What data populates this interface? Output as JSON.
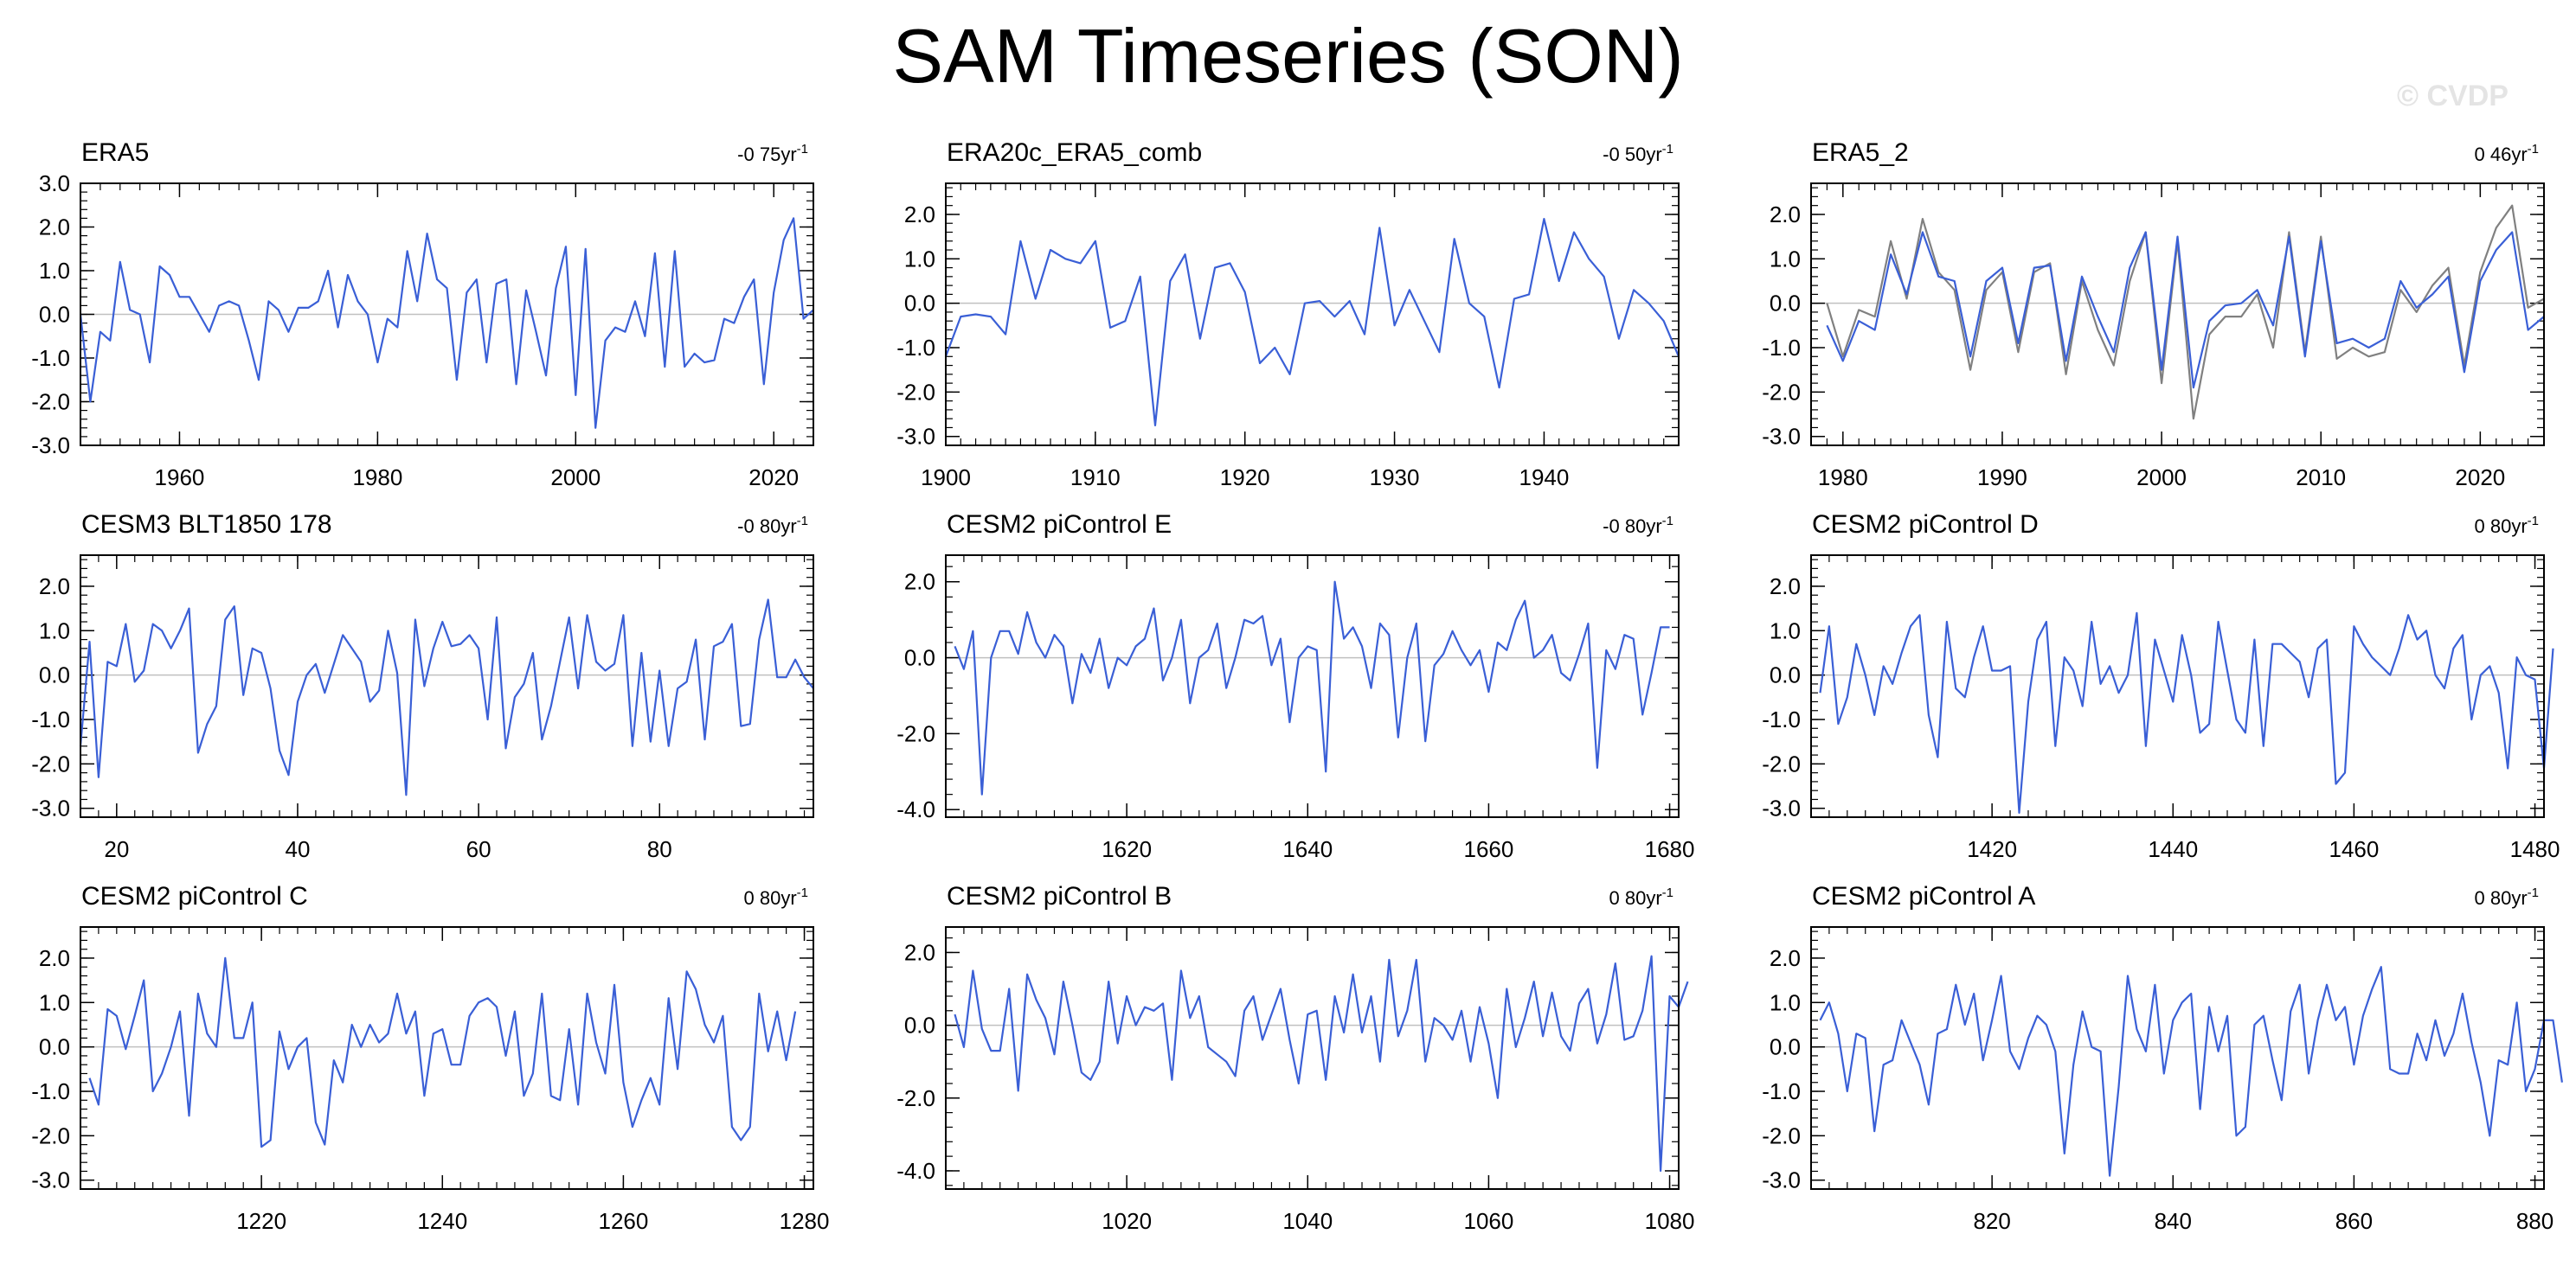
{
  "title": "SAM Timeseries (SON)",
  "watermark": "© CVDP",
  "colors": {
    "series": "#3a5fd6",
    "comparison": "#808080",
    "zero": "#c0c0c0"
  },
  "chart_data": [
    {
      "type": "line",
      "label": "ERA5",
      "trend": "-0 75yr",
      "trend_unit": "-1",
      "x_start": 1950,
      "x_step": 1,
      "xlim": [
        1950,
        2024
      ],
      "xticks": [
        1960,
        1980,
        2000,
        2020
      ],
      "ylim": [
        -3,
        3
      ],
      "yticks": [
        -3,
        -2,
        -1,
        0,
        1,
        2,
        3
      ],
      "series": [
        {
          "values": [
            0.0,
            -2.0,
            -0.4,
            -0.6,
            1.2,
            0.1,
            0.0,
            -1.1,
            1.1,
            0.9,
            0.4,
            0.4,
            0.0,
            -0.4,
            0.2,
            0.3,
            0.2,
            -0.6,
            -1.5,
            0.3,
            0.1,
            -0.4,
            0.15,
            0.15,
            0.3,
            1.0,
            -0.3,
            0.9,
            0.3,
            0.0,
            -1.1,
            -0.1,
            -0.3,
            1.45,
            0.3,
            1.85,
            0.8,
            0.6,
            -1.5,
            0.5,
            0.8,
            -1.1,
            0.7,
            0.8,
            -1.6,
            0.55,
            -0.4,
            -1.4,
            0.6,
            1.55,
            -1.85,
            1.5,
            -2.6,
            -0.6,
            -0.3,
            -0.4,
            0.3,
            -0.5,
            1.4,
            -1.2,
            1.45,
            -1.2,
            -0.9,
            -1.1,
            -1.05,
            -0.1,
            -0.2,
            0.4,
            0.8,
            -1.6,
            0.5,
            1.7,
            2.2,
            -0.1,
            0.1
          ]
        }
      ]
    },
    {
      "type": "line",
      "label": "ERA20c_ERA5_comb",
      "trend": "-0 50yr",
      "trend_unit": "-1",
      "x_start": 1900,
      "x_step": 1,
      "xlim": [
        1900,
        1949
      ],
      "xticks": [
        1900,
        1910,
        1920,
        1930,
        1940
      ],
      "ylim": [
        -3.2,
        2.7
      ],
      "yticks": [
        -3,
        -2,
        -1,
        0,
        1,
        2
      ],
      "series": [
        {
          "values": [
            -1.2,
            -0.3,
            -0.25,
            -0.3,
            -0.7,
            1.4,
            0.1,
            1.2,
            1.0,
            0.9,
            1.4,
            -0.55,
            -0.4,
            0.6,
            -2.75,
            0.5,
            1.1,
            -0.8,
            0.8,
            0.9,
            0.25,
            -1.35,
            -1.0,
            -1.6,
            0.0,
            0.05,
            -0.3,
            0.05,
            -0.7,
            1.7,
            -0.5,
            0.3,
            -0.4,
            -1.1,
            1.45,
            0.0,
            -0.3,
            -1.9,
            0.1,
            0.2,
            1.9,
            0.5,
            1.6,
            1.0,
            0.6,
            -0.8,
            0.3,
            0.0,
            -0.4,
            -1.2
          ]
        }
      ]
    },
    {
      "type": "line",
      "label": "ERA5_2",
      "trend": "0 46yr",
      "trend_unit": "-1",
      "x_start": 1979,
      "x_step": 1,
      "xlim": [
        1978,
        2024
      ],
      "xticks": [
        1980,
        1990,
        2000,
        2010,
        2020
      ],
      "ylim": [
        -3.2,
        2.7
      ],
      "yticks": [
        -3,
        -2,
        -1,
        0,
        1,
        2
      ],
      "series": [
        {
          "name": "",
          "values": [
            -0.5,
            -1.3,
            -0.4,
            -0.6,
            1.1,
            0.2,
            1.6,
            0.6,
            0.5,
            -1.2,
            0.5,
            0.8,
            -0.9,
            0.8,
            0.85,
            -1.3,
            0.6,
            -0.3,
            -1.1,
            0.8,
            1.6,
            -1.5,
            1.5,
            -1.9,
            -0.4,
            -0.05,
            0.0,
            0.3,
            -0.5,
            1.5,
            -1.2,
            1.4,
            -0.9,
            -0.8,
            -1.0,
            -0.8,
            0.5,
            -0.1,
            0.2,
            0.6,
            -1.55,
            0.5,
            1.2,
            1.6,
            -0.6,
            -0.3
          ]
        },
        {
          "name": "",
          "values": [
            0.0,
            -1.2,
            -0.15,
            -0.3,
            1.4,
            0.1,
            1.9,
            0.7,
            0.3,
            -1.5,
            0.3,
            0.7,
            -1.1,
            0.7,
            0.9,
            -1.6,
            0.5,
            -0.6,
            -1.4,
            0.5,
            1.6,
            -1.8,
            1.4,
            -2.6,
            -0.7,
            -0.3,
            -0.3,
            0.2,
            -1.0,
            1.6,
            -1.1,
            1.5,
            -1.25,
            -1.0,
            -1.2,
            -1.1,
            0.3,
            -0.2,
            0.4,
            0.8,
            -1.4,
            0.7,
            1.7,
            2.2,
            -0.1,
            0.1
          ]
        }
      ]
    },
    {
      "type": "line",
      "label": "CESM3 BLT1850 178",
      "trend": "-0 80yr",
      "trend_unit": "-1",
      "x_start": 16,
      "x_step": 1,
      "xlim": [
        16,
        97
      ],
      "xticks": [
        20,
        40,
        60,
        80
      ],
      "ylim": [
        -3.2,
        2.7
      ],
      "yticks": [
        -3,
        -2,
        -1,
        0,
        1,
        2
      ],
      "series": [
        {
          "values": [
            -1.6,
            0.75,
            -2.3,
            0.3,
            0.2,
            1.15,
            -0.15,
            0.1,
            1.15,
            1.0,
            0.6,
            1.0,
            1.5,
            -1.75,
            -1.1,
            -0.7,
            1.25,
            1.55,
            -0.45,
            0.6,
            0.5,
            -0.3,
            -1.7,
            -2.25,
            -0.6,
            0.0,
            0.25,
            -0.4,
            0.25,
            0.9,
            0.6,
            0.3,
            -0.6,
            -0.35,
            1.0,
            0.05,
            -2.7,
            1.25,
            -0.25,
            0.6,
            1.2,
            0.65,
            0.7,
            0.9,
            0.6,
            -1.0,
            1.3,
            -1.65,
            -0.5,
            -0.2,
            0.5,
            -1.45,
            -0.7,
            0.3,
            1.3,
            -0.3,
            1.35,
            0.3,
            0.1,
            0.25,
            1.35,
            -1.6,
            0.5,
            -1.5,
            0.1,
            -1.6,
            -0.3,
            -0.15,
            0.8,
            -1.45,
            0.65,
            0.75,
            1.15,
            -1.15,
            -1.1,
            0.8,
            1.7,
            -0.05,
            -0.05,
            0.35,
            -0.05,
            -0.3
          ]
        }
      ]
    },
    {
      "type": "line",
      "label": "CESM2 piControl E",
      "trend": "-0 80yr",
      "trend_unit": "-1",
      "x_start": 1601,
      "x_step": 1,
      "xlim": [
        1600,
        1681
      ],
      "xticks": [
        1620,
        1640,
        1660,
        1680
      ],
      "ylim": [
        -4.2,
        2.7
      ],
      "yticks": [
        -4,
        -2,
        0,
        2
      ],
      "series": [
        {
          "values": [
            0.3,
            -0.3,
            0.7,
            -3.6,
            0.0,
            0.7,
            0.7,
            0.1,
            1.2,
            0.4,
            0.0,
            0.6,
            0.3,
            -1.2,
            0.1,
            -0.4,
            0.5,
            -0.8,
            0.0,
            -0.2,
            0.3,
            0.5,
            1.3,
            -0.6,
            0.0,
            1.0,
            -1.2,
            0.0,
            0.2,
            0.9,
            -0.8,
            0.0,
            1.0,
            0.9,
            1.1,
            -0.2,
            0.5,
            -1.7,
            0.0,
            0.3,
            0.2,
            -3.0,
            2.0,
            0.5,
            0.8,
            0.3,
            -0.8,
            0.9,
            0.6,
            -2.1,
            0.0,
            0.9,
            -2.2,
            -0.2,
            0.1,
            0.7,
            0.2,
            -0.2,
            0.2,
            -0.9,
            0.4,
            0.2,
            1.0,
            1.5,
            0.0,
            0.2,
            0.6,
            -0.4,
            -0.6,
            0.1,
            0.9,
            -2.9,
            0.2,
            -0.3,
            0.6,
            0.5,
            -1.5,
            -0.4,
            0.8,
            0.8
          ]
        }
      ]
    },
    {
      "type": "line",
      "label": "CESM2 piControl D",
      "trend": "0 80yr",
      "trend_unit": "-1",
      "x_start": 1401,
      "x_step": 1,
      "xlim": [
        1400,
        1481
      ],
      "xticks": [
        1420,
        1440,
        1460,
        1480
      ],
      "ylim": [
        -3.2,
        2.7
      ],
      "yticks": [
        -3,
        -2,
        -1,
        0,
        1,
        2
      ],
      "series": [
        {
          "values": [
            -0.4,
            1.1,
            -1.1,
            -0.5,
            0.7,
            0.0,
            -0.9,
            0.2,
            -0.2,
            0.5,
            1.1,
            1.35,
            -0.9,
            -1.85,
            1.2,
            -0.3,
            -0.5,
            0.4,
            1.1,
            0.1,
            0.1,
            0.2,
            -3.1,
            -0.6,
            0.8,
            1.2,
            -1.6,
            0.4,
            0.1,
            -0.7,
            1.2,
            -0.2,
            0.2,
            -0.4,
            0.0,
            1.4,
            -1.6,
            0.8,
            0.1,
            -0.6,
            0.9,
            0.0,
            -1.3,
            -1.1,
            1.2,
            0.1,
            -1.0,
            -1.3,
            0.8,
            -1.6,
            0.7,
            0.7,
            0.5,
            0.3,
            -0.5,
            0.6,
            0.8,
            -2.45,
            -2.2,
            1.1,
            0.7,
            0.4,
            0.2,
            0.0,
            0.6,
            1.35,
            0.8,
            1.0,
            0.0,
            -0.3,
            0.6,
            0.9,
            -1.0,
            0.0,
            0.2,
            -0.4,
            -2.1,
            0.4,
            0.0,
            -0.1,
            -2.1,
            0.6
          ]
        }
      ]
    },
    {
      "type": "line",
      "label": "CESM2 piControl C",
      "trend": "0 80yr",
      "trend_unit": "-1",
      "x_start": 1201,
      "x_step": 1,
      "xlim": [
        1200,
        1281
      ],
      "xticks": [
        1220,
        1240,
        1260,
        1280
      ],
      "ylim": [
        -3.2,
        2.7
      ],
      "yticks": [
        -3,
        -2,
        -1,
        0,
        1,
        2
      ],
      "series": [
        {
          "values": [
            -0.7,
            -1.3,
            0.85,
            0.7,
            -0.05,
            0.7,
            1.5,
            -1.0,
            -0.6,
            0.0,
            0.8,
            -1.55,
            1.2,
            0.3,
            0.0,
            2.0,
            0.2,
            0.2,
            1.0,
            -2.25,
            -2.1,
            0.35,
            -0.5,
            0.0,
            0.2,
            -1.7,
            -2.2,
            -0.3,
            -0.8,
            0.5,
            0.0,
            0.5,
            0.1,
            0.3,
            1.2,
            0.3,
            0.8,
            -1.1,
            0.3,
            0.4,
            -0.4,
            -0.4,
            0.7,
            1.0,
            1.1,
            0.9,
            -0.2,
            0.8,
            -1.1,
            -0.6,
            1.2,
            -1.1,
            -1.2,
            0.4,
            -1.3,
            1.2,
            0.1,
            -0.6,
            1.4,
            -0.8,
            -1.8,
            -1.2,
            -0.7,
            -1.3,
            1.1,
            -0.5,
            1.7,
            1.3,
            0.5,
            0.1,
            0.7,
            -1.8,
            -2.1,
            -1.8,
            1.2,
            -0.1,
            0.8,
            -0.3,
            0.8
          ]
        }
      ]
    },
    {
      "type": "line",
      "label": "CESM2 piControl B",
      "trend": "0 80yr",
      "trend_unit": "-1",
      "x_start": 1001,
      "x_step": 1,
      "xlim": [
        1000,
        1081
      ],
      "xticks": [
        1020,
        1040,
        1060,
        1080
      ],
      "ylim": [
        -4.5,
        2.7
      ],
      "yticks": [
        -4,
        -2,
        0,
        2
      ],
      "series": [
        {
          "values": [
            0.3,
            -0.6,
            1.5,
            -0.1,
            -0.7,
            -0.7,
            1.0,
            -1.8,
            1.4,
            0.7,
            0.2,
            -0.8,
            1.2,
            0.0,
            -1.3,
            -1.5,
            -1.0,
            1.2,
            -0.5,
            0.8,
            0.0,
            0.5,
            0.4,
            0.6,
            -1.5,
            1.5,
            0.2,
            0.8,
            -0.6,
            -0.8,
            -1.0,
            -1.4,
            0.4,
            0.8,
            -0.4,
            0.3,
            1.0,
            -0.4,
            -1.6,
            0.3,
            0.4,
            -1.5,
            0.8,
            -0.2,
            1.4,
            -0.2,
            0.8,
            -1.0,
            1.8,
            -0.3,
            0.4,
            1.8,
            -1.0,
            0.2,
            0.0,
            -0.4,
            0.4,
            -1.0,
            0.5,
            -0.5,
            -2.0,
            1.0,
            -0.6,
            0.2,
            1.2,
            -0.3,
            0.9,
            -0.3,
            -0.7,
            0.6,
            1.0,
            -0.5,
            0.3,
            1.7,
            -0.4,
            -0.3,
            0.4,
            1.9,
            -4.0,
            0.8,
            0.5,
            1.2
          ]
        }
      ]
    },
    {
      "type": "line",
      "label": "CESM2 piControl A",
      "trend": "0 80yr",
      "trend_unit": "-1",
      "x_start": 801,
      "x_step": 1,
      "xlim": [
        800,
        881
      ],
      "xticks": [
        820,
        840,
        860,
        880
      ],
      "ylim": [
        -3.2,
        2.7
      ],
      "yticks": [
        -3,
        -2,
        -1,
        0,
        1,
        2
      ],
      "series": [
        {
          "values": [
            0.6,
            1.0,
            0.3,
            -1.0,
            0.3,
            0.2,
            -1.9,
            -0.4,
            -0.3,
            0.6,
            0.1,
            -0.4,
            -1.3,
            0.3,
            0.4,
            1.4,
            0.5,
            1.2,
            -0.3,
            0.6,
            1.6,
            -0.1,
            -0.5,
            0.2,
            0.7,
            0.5,
            -0.1,
            -2.4,
            -0.4,
            0.8,
            0.0,
            -0.1,
            -2.9,
            -0.9,
            1.6,
            0.4,
            -0.1,
            1.4,
            -0.6,
            0.6,
            1.0,
            1.2,
            -1.4,
            0.9,
            -0.1,
            0.7,
            -2.0,
            -1.8,
            0.5,
            0.7,
            -0.3,
            -1.2,
            0.8,
            1.4,
            -0.6,
            0.6,
            1.4,
            0.6,
            0.9,
            -0.4,
            0.7,
            1.3,
            1.8,
            -0.5,
            -0.6,
            -0.6,
            0.3,
            -0.3,
            0.6,
            -0.2,
            0.3,
            1.2,
            0.1,
            -0.8,
            -2.0,
            -0.3,
            -0.4,
            1.0,
            -1.0,
            -0.5,
            0.6,
            0.6,
            -0.8
          ]
        }
      ]
    }
  ]
}
